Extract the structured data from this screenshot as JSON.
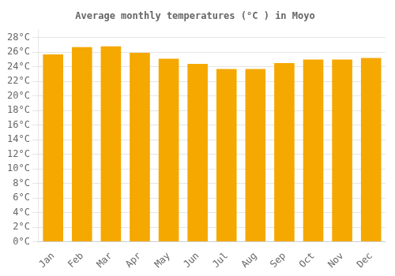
{
  "chart_data": {
    "type": "bar",
    "title": "Average monthly temperatures (°C ) in Moyo",
    "categories": [
      "Jan",
      "Feb",
      "Mar",
      "Apr",
      "May",
      "Jun",
      "Jul",
      "Aug",
      "Sep",
      "Oct",
      "Nov",
      "Dec"
    ],
    "values": [
      25.7,
      26.7,
      26.8,
      25.9,
      25.1,
      24.4,
      23.7,
      23.7,
      24.5,
      25.0,
      25.0,
      25.2
    ],
    "color": "#F5A800",
    "ylim": [
      0,
      29
    ],
    "yticks": [
      {
        "value": 0,
        "label": "0°C"
      },
      {
        "value": 2,
        "label": "2°C"
      },
      {
        "value": 4,
        "label": "4°C"
      },
      {
        "value": 6,
        "label": "6°C"
      },
      {
        "value": 8,
        "label": "8°C"
      },
      {
        "value": 10,
        "label": "10°C"
      },
      {
        "value": 12,
        "label": "12°C"
      },
      {
        "value": 14,
        "label": "14°C"
      },
      {
        "value": 16,
        "label": "16°C"
      },
      {
        "value": 18,
        "label": "18°C"
      },
      {
        "value": 20,
        "label": "20°C"
      },
      {
        "value": 22,
        "label": "22°C"
      },
      {
        "value": 24,
        "label": "24°C"
      },
      {
        "value": 26,
        "label": "26°C"
      },
      {
        "value": 28,
        "label": "28°C"
      }
    ],
    "grid": true
  }
}
